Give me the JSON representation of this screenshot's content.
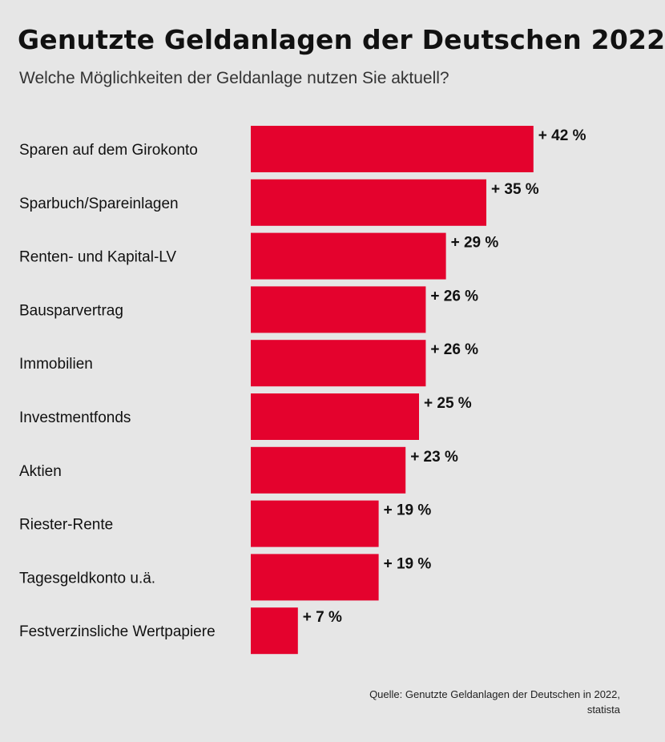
{
  "header": {
    "title": "Genutzte Geldanlagen der Deutschen 2022",
    "subtitle": "Welche Möglichkeiten der Geldanlage nutzen Sie aktuell?"
  },
  "footer": {
    "source_line1": "Quelle: Genutzte Geldanlagen der Deutschen in 2022,",
    "source_line2": "statista"
  },
  "colors": {
    "bar": "#e4022d",
    "background": "#e6e6e6"
  },
  "chart_data": {
    "type": "bar",
    "orientation": "horizontal",
    "categories": [
      "Sparen auf dem Girokonto",
      "Sparbuch/Spareinlagen",
      "Renten- und Kapital-LV",
      "Bausparvertrag",
      "Immobilien",
      "Investmentfonds",
      "Aktien",
      "Riester-Rente",
      "Tagesgeldkonto u.ä.",
      "Festverzinsliche Wertpapiere"
    ],
    "values": [
      42,
      35,
      29,
      26,
      26,
      25,
      23,
      19,
      19,
      7
    ],
    "value_labels": [
      "+ 42 %",
      "+ 35 %",
      "+ 29 %",
      "+ 26 %",
      "+ 26 %",
      "+ 25 %",
      "+ 23 %",
      "+ 19 %",
      "+ 19 %",
      "+ 7 %"
    ],
    "unit": "%",
    "grid": false,
    "legend": "none"
  }
}
